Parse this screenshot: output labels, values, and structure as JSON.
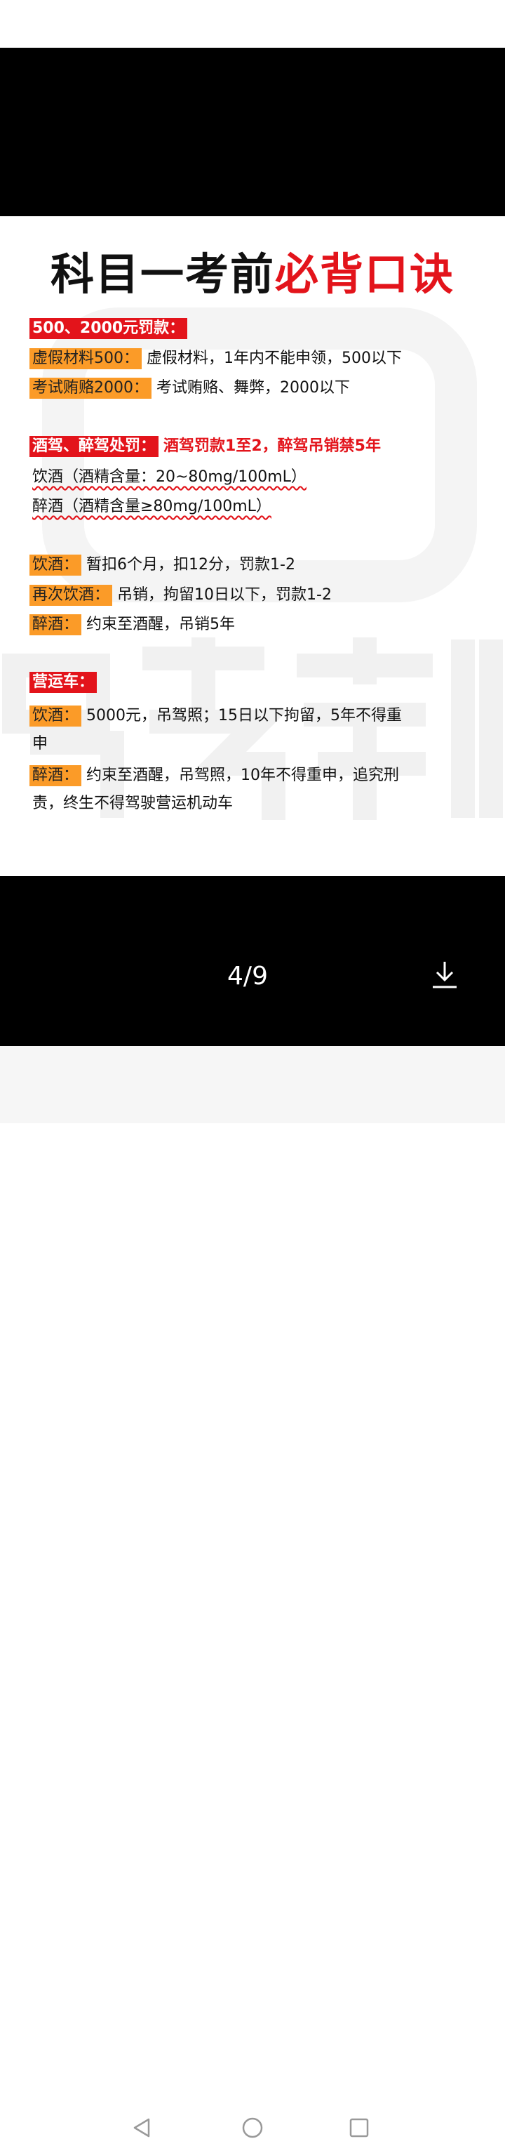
{
  "viewer": {
    "page_counter": "4/9",
    "download_icon": "download-icon"
  },
  "image": {
    "title_black": "科目一考前",
    "title_red": "必背口诀",
    "watermark": "驾考宝典",
    "sections": [
      {
        "header": "500、2000元罚款：",
        "rows": [
          {
            "tag": "虚假材料500：",
            "text": "虚假材料，1年内不能申领，500以下"
          },
          {
            "tag": "考试贿赂2000：",
            "text": "考试贿赂、舞弊，2000以下"
          }
        ]
      },
      {
        "header": "酒驾、醉驾处罚：",
        "header_note": "酒驾罚款1至2，醉驾吊销禁5年",
        "notes": [
          "饮酒（酒精含量：20~80mg/100mL）",
          "醉酒（酒精含量≥80mg/100mL）"
        ],
        "rows": [
          {
            "tag": "饮酒：",
            "text": "暂扣6个月，扣12分，罚款1-2"
          },
          {
            "tag": "再次饮酒：",
            "text": "吊销，拘留10日以下，罚款1-2"
          },
          {
            "tag": "醉酒：",
            "text": "约束至酒醒，吊销5年"
          }
        ]
      },
      {
        "header": "营运车：",
        "rows": [
          {
            "tag": "饮酒：",
            "text": "5000元，吊驾照；15日以下拘留，5年不得重",
            "text2": "申"
          },
          {
            "tag": "醉酒：",
            "text": "约束至酒醒，吊驾照，10年不得重申，追究刑",
            "text2": "责，终生不得驾驶营运机动车"
          }
        ]
      }
    ]
  },
  "navbar": {
    "back": "back-icon",
    "home": "home-icon",
    "recents": "recents-icon"
  },
  "colors": {
    "red": "#e3141b",
    "orange": "#fb9b28"
  }
}
